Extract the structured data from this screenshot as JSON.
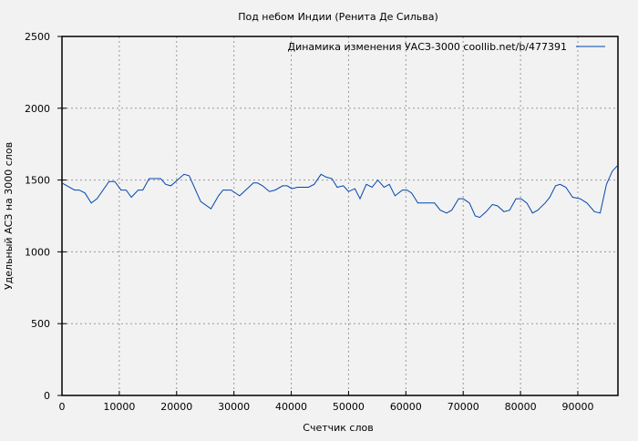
{
  "chart_data": {
    "type": "line",
    "title": "Под небом Индии (Ренита Де Сильва)",
    "xlabel": "Счетчик слов",
    "ylabel": "Удельный АСЗ на 3000 слов",
    "xlim": [
      0,
      97000
    ],
    "ylim": [
      0,
      2500
    ],
    "xticks": [
      0,
      10000,
      20000,
      30000,
      40000,
      50000,
      60000,
      70000,
      80000,
      90000
    ],
    "yticks": [
      0,
      500,
      1000,
      1500,
      2000,
      2500
    ],
    "grid": true,
    "legend_position": "top-right",
    "series": [
      {
        "name": "Динамика изменения УАСЗ-3000  coollib.net/b/477391",
        "color": "#0046ad",
        "x": [
          0,
          2200,
          3000,
          4000,
          5100,
          6100,
          8200,
          9200,
          10300,
          11200,
          12100,
          13300,
          14100,
          15200,
          17200,
          18100,
          19000,
          21300,
          22200,
          24200,
          26000,
          27300,
          28100,
          29500,
          31000,
          33400,
          34100,
          35000,
          36200,
          37200,
          38500,
          39300,
          40100,
          41100,
          43000,
          44000,
          45200,
          46100,
          47100,
          48000,
          49100,
          50000,
          51100,
          52000,
          53100,
          54100,
          55100,
          56200,
          57100,
          58100,
          59400,
          60200,
          61000,
          62100,
          65000,
          66000,
          67100,
          68000,
          69200,
          70000,
          71100,
          72100,
          72900,
          74000,
          75100,
          76000,
          77100,
          78100,
          79200,
          80100,
          81100,
          82100,
          83000,
          84300,
          85100,
          86100,
          86900,
          87900,
          89100,
          90400,
          91600,
          92900,
          93900,
          95000,
          96000,
          96900
        ],
        "y": [
          1480,
          1430,
          1430,
          1410,
          1340,
          1370,
          1490,
          1490,
          1430,
          1430,
          1380,
          1430,
          1430,
          1510,
          1510,
          1470,
          1460,
          1540,
          1530,
          1350,
          1300,
          1390,
          1430,
          1430,
          1390,
          1480,
          1480,
          1460,
          1420,
          1430,
          1460,
          1460,
          1440,
          1450,
          1450,
          1470,
          1540,
          1520,
          1510,
          1450,
          1460,
          1420,
          1440,
          1370,
          1470,
          1450,
          1500,
          1450,
          1470,
          1390,
          1430,
          1430,
          1410,
          1340,
          1340,
          1290,
          1270,
          1290,
          1370,
          1370,
          1340,
          1250,
          1240,
          1280,
          1330,
          1320,
          1280,
          1290,
          1370,
          1370,
          1340,
          1270,
          1290,
          1340,
          1380,
          1460,
          1470,
          1450,
          1380,
          1370,
          1340,
          1280,
          1270,
          1470,
          1560,
          1600
        ]
      }
    ]
  }
}
